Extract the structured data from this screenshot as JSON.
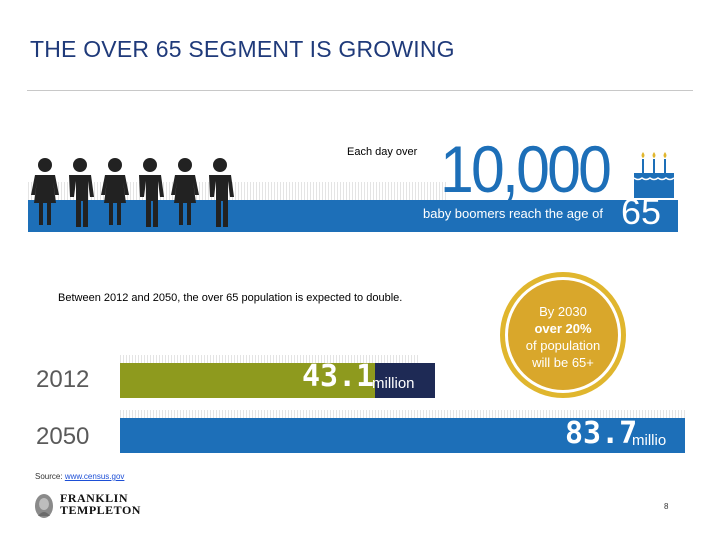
{
  "slide": {
    "title": "THE OVER 65 SEGMENT IS GROWING",
    "page_number": "8"
  },
  "infographic": {
    "each_day_label": "Each day over",
    "big_number": "10,000",
    "band_text": "baby boomers reach the age of",
    "age": "65",
    "people_count": 6,
    "cake_icon": "birthday-cake-icon"
  },
  "population": {
    "intro": "Between 2012 and 2050, the over 65 population is expected to double.",
    "rows": [
      {
        "year": "2012",
        "value": "43.1",
        "unit": "million",
        "color": "#8e9a1e"
      },
      {
        "year": "2050",
        "value": "83.7",
        "unit": "millio",
        "color": "#1d6fb8"
      }
    ]
  },
  "callout": {
    "line1": "By 2030",
    "line2": "over 20%",
    "line3": "of population",
    "line4": "will be 65+"
  },
  "footer": {
    "source_label": "Source:",
    "source_link": "www.census.gov",
    "logo_line1": "FRANKLIN",
    "logo_line2": "TEMPLETON"
  },
  "colors": {
    "title": "#1f3a7a",
    "blue": "#1d6fb8",
    "olive": "#8e9a1e",
    "gold": "#d9a72b"
  }
}
